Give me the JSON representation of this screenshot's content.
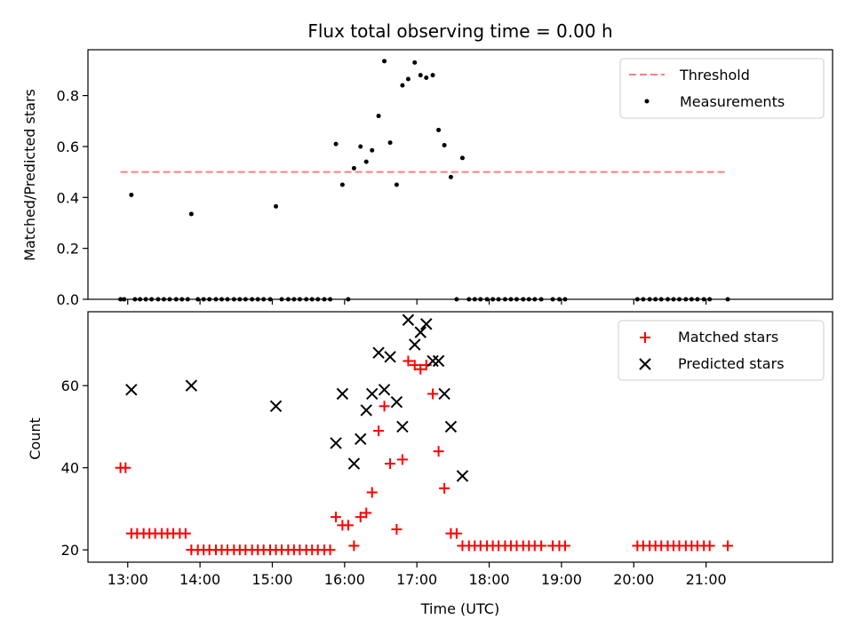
{
  "chart_data": [
    {
      "type": "scatter",
      "title": "Flux total observing time = 0.00 h",
      "xlabel": "",
      "ylabel": "Matched/Predicted stars",
      "xlim": [
        12.45,
        22.75
      ],
      "ylim": [
        0,
        0.98
      ],
      "yticks": [
        0,
        0.2,
        0.4,
        0.6,
        0.8
      ],
      "ytick_labels": [
        "0.0",
        "0.2",
        "0.4",
        "0.6",
        "0.8"
      ],
      "xticks": [
        13,
        14,
        15,
        16,
        17,
        18,
        19,
        20,
        21
      ],
      "grid": false,
      "legend_position": "top-right",
      "threshold": {
        "name": "Threshold",
        "x": [
          12.9,
          21.3
        ],
        "y": 0.5,
        "color": "#ff7f7f",
        "style": "dashed"
      },
      "series": [
        {
          "name": "Measurements",
          "color": "#000000",
          "marker": "dot",
          "points": [
            [
              12.9,
              0
            ],
            [
              12.95,
              0
            ],
            [
              13.05,
              0.41
            ],
            [
              13.1,
              0
            ],
            [
              13.17,
              0
            ],
            [
              13.25,
              0
            ],
            [
              13.33,
              0
            ],
            [
              13.42,
              0
            ],
            [
              13.5,
              0
            ],
            [
              13.58,
              0
            ],
            [
              13.67,
              0
            ],
            [
              13.75,
              0
            ],
            [
              13.83,
              0
            ],
            [
              13.88,
              0.335
            ],
            [
              13.97,
              0
            ],
            [
              14.05,
              0
            ],
            [
              14.13,
              0
            ],
            [
              14.22,
              0
            ],
            [
              14.3,
              0
            ],
            [
              14.38,
              0
            ],
            [
              14.47,
              0
            ],
            [
              14.55,
              0
            ],
            [
              14.63,
              0
            ],
            [
              14.72,
              0
            ],
            [
              14.8,
              0
            ],
            [
              14.88,
              0
            ],
            [
              14.97,
              0
            ],
            [
              15.05,
              0.365
            ],
            [
              15.13,
              0
            ],
            [
              15.22,
              0
            ],
            [
              15.3,
              0
            ],
            [
              15.38,
              0
            ],
            [
              15.47,
              0
            ],
            [
              15.55,
              0
            ],
            [
              15.63,
              0
            ],
            [
              15.72,
              0
            ],
            [
              15.8,
              0
            ],
            [
              15.88,
              0.61
            ],
            [
              15.97,
              0.45
            ],
            [
              16.05,
              0
            ],
            [
              16.13,
              0.515
            ],
            [
              16.22,
              0.6
            ],
            [
              16.3,
              0.54
            ],
            [
              16.38,
              0.585
            ],
            [
              16.47,
              0.72
            ],
            [
              16.55,
              0.935
            ],
            [
              16.63,
              0.615
            ],
            [
              16.72,
              0.45
            ],
            [
              16.8,
              0.84
            ],
            [
              16.88,
              0.865
            ],
            [
              16.97,
              0.93
            ],
            [
              17.05,
              0.88
            ],
            [
              17.13,
              0.87
            ],
            [
              17.22,
              0.88
            ],
            [
              17.3,
              0.665
            ],
            [
              17.38,
              0.605
            ],
            [
              17.47,
              0.48
            ],
            [
              17.55,
              0
            ],
            [
              17.63,
              0.555
            ],
            [
              17.72,
              0
            ],
            [
              17.8,
              0
            ],
            [
              17.88,
              0
            ],
            [
              17.97,
              0
            ],
            [
              18.05,
              0
            ],
            [
              18.13,
              0
            ],
            [
              18.22,
              0
            ],
            [
              18.3,
              0
            ],
            [
              18.38,
              0
            ],
            [
              18.47,
              0
            ],
            [
              18.55,
              0
            ],
            [
              18.63,
              0
            ],
            [
              18.72,
              0
            ],
            [
              18.88,
              0
            ],
            [
              18.97,
              0
            ],
            [
              19.05,
              0
            ],
            [
              20.05,
              0
            ],
            [
              20.13,
              0
            ],
            [
              20.22,
              0
            ],
            [
              20.3,
              0
            ],
            [
              20.38,
              0
            ],
            [
              20.47,
              0
            ],
            [
              20.55,
              0
            ],
            [
              20.63,
              0
            ],
            [
              20.72,
              0
            ],
            [
              20.8,
              0
            ],
            [
              20.88,
              0
            ],
            [
              20.97,
              0
            ],
            [
              21.05,
              0
            ],
            [
              21.3,
              0
            ]
          ]
        }
      ]
    },
    {
      "type": "scatter",
      "title": "",
      "xlabel": "Time (UTC)",
      "ylabel": "Count",
      "xlim": [
        12.45,
        22.75
      ],
      "ylim": [
        17,
        78
      ],
      "yticks": [
        20,
        40,
        60
      ],
      "ytick_labels": [
        "20",
        "40",
        "60"
      ],
      "xticks": [
        13,
        14,
        15,
        16,
        17,
        18,
        19,
        20,
        21
      ],
      "xtick_labels": [
        "13:00",
        "14:00",
        "15:00",
        "16:00",
        "17:00",
        "18:00",
        "19:00",
        "20:00",
        "21:00"
      ],
      "grid": false,
      "legend_position": "top-right",
      "series": [
        {
          "name": "Matched stars",
          "color": "#ff0000",
          "marker": "plus",
          "points": [
            [
              12.9,
              40
            ],
            [
              12.97,
              40
            ],
            [
              13.05,
              24
            ],
            [
              13.13,
              24
            ],
            [
              13.22,
              24
            ],
            [
              13.3,
              24
            ],
            [
              13.38,
              24
            ],
            [
              13.47,
              24
            ],
            [
              13.55,
              24
            ],
            [
              13.63,
              24
            ],
            [
              13.72,
              24
            ],
            [
              13.8,
              24
            ],
            [
              13.88,
              20
            ],
            [
              13.97,
              20
            ],
            [
              14.05,
              20
            ],
            [
              14.13,
              20
            ],
            [
              14.22,
              20
            ],
            [
              14.3,
              20
            ],
            [
              14.38,
              20
            ],
            [
              14.47,
              20
            ],
            [
              14.55,
              20
            ],
            [
              14.63,
              20
            ],
            [
              14.72,
              20
            ],
            [
              14.8,
              20
            ],
            [
              14.88,
              20
            ],
            [
              14.97,
              20
            ],
            [
              15.05,
              20
            ],
            [
              15.13,
              20
            ],
            [
              15.22,
              20
            ],
            [
              15.3,
              20
            ],
            [
              15.38,
              20
            ],
            [
              15.47,
              20
            ],
            [
              15.55,
              20
            ],
            [
              15.63,
              20
            ],
            [
              15.72,
              20
            ],
            [
              15.8,
              20
            ],
            [
              15.88,
              28
            ],
            [
              15.97,
              26
            ],
            [
              16.05,
              26
            ],
            [
              16.13,
              21
            ],
            [
              16.22,
              28
            ],
            [
              16.3,
              29
            ],
            [
              16.38,
              34
            ],
            [
              16.47,
              49
            ],
            [
              16.55,
              55
            ],
            [
              16.63,
              41
            ],
            [
              16.72,
              25
            ],
            [
              16.8,
              42
            ],
            [
              16.88,
              66
            ],
            [
              16.97,
              65
            ],
            [
              17.05,
              64
            ],
            [
              17.13,
              65
            ],
            [
              17.22,
              58
            ],
            [
              17.3,
              44
            ],
            [
              17.38,
              35
            ],
            [
              17.47,
              24
            ],
            [
              17.55,
              24
            ],
            [
              17.63,
              21
            ],
            [
              17.72,
              21
            ],
            [
              17.8,
              21
            ],
            [
              17.88,
              21
            ],
            [
              17.97,
              21
            ],
            [
              18.05,
              21
            ],
            [
              18.13,
              21
            ],
            [
              18.22,
              21
            ],
            [
              18.3,
              21
            ],
            [
              18.38,
              21
            ],
            [
              18.47,
              21
            ],
            [
              18.55,
              21
            ],
            [
              18.63,
              21
            ],
            [
              18.72,
              21
            ],
            [
              18.88,
              21
            ],
            [
              18.97,
              21
            ],
            [
              19.05,
              21
            ],
            [
              20.05,
              21
            ],
            [
              20.13,
              21
            ],
            [
              20.22,
              21
            ],
            [
              20.3,
              21
            ],
            [
              20.38,
              21
            ],
            [
              20.47,
              21
            ],
            [
              20.55,
              21
            ],
            [
              20.63,
              21
            ],
            [
              20.72,
              21
            ],
            [
              20.8,
              21
            ],
            [
              20.88,
              21
            ],
            [
              20.97,
              21
            ],
            [
              21.05,
              21
            ],
            [
              21.3,
              21
            ]
          ]
        },
        {
          "name": "Predicted stars",
          "color": "#000000",
          "marker": "x",
          "points": [
            [
              13.05,
              59
            ],
            [
              13.88,
              60
            ],
            [
              15.05,
              55
            ],
            [
              15.88,
              46
            ],
            [
              15.97,
              58
            ],
            [
              16.13,
              41
            ],
            [
              16.22,
              47
            ],
            [
              16.3,
              54
            ],
            [
              16.38,
              58
            ],
            [
              16.47,
              68
            ],
            [
              16.55,
              59
            ],
            [
              16.63,
              67
            ],
            [
              16.72,
              56
            ],
            [
              16.8,
              50
            ],
            [
              16.88,
              76
            ],
            [
              16.97,
              70
            ],
            [
              17.05,
              73
            ],
            [
              17.13,
              75
            ],
            [
              17.22,
              66
            ],
            [
              17.3,
              66
            ],
            [
              17.38,
              58
            ],
            [
              17.47,
              50
            ],
            [
              17.63,
              38
            ]
          ]
        }
      ]
    }
  ]
}
